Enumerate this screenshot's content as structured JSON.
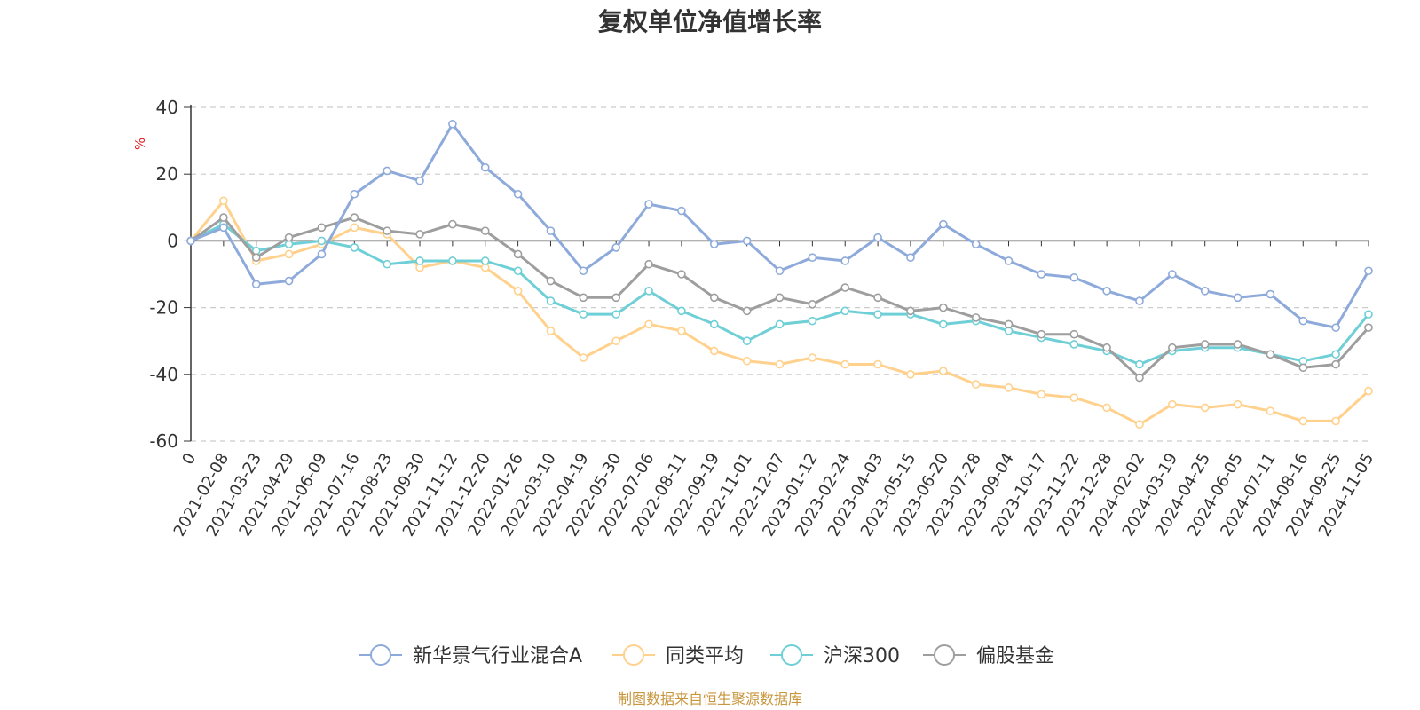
{
  "chart_data": {
    "type": "line",
    "title": "复权单位净值增长率",
    "ylabel": "%",
    "ylim": [
      -60,
      40
    ],
    "yticks": [
      40,
      20,
      0,
      -20,
      -40,
      -60
    ],
    "grid": true,
    "legend_position": "bottom-center",
    "source": "制图数据来自恒生聚源数据库",
    "categories": [
      "0",
      "2021-02-08",
      "2021-03-23",
      "2021-04-29",
      "2021-06-09",
      "2021-07-16",
      "2021-08-23",
      "2021-09-30",
      "2021-11-12",
      "2021-12-20",
      "2022-01-26",
      "2022-03-10",
      "2022-04-19",
      "2022-05-30",
      "2022-07-06",
      "2022-08-11",
      "2022-09-19",
      "2022-11-01",
      "2022-12-07",
      "2023-01-12",
      "2023-02-24",
      "2023-04-03",
      "2023-05-15",
      "2023-06-20",
      "2023-07-28",
      "2023-09-04",
      "2023-10-17",
      "2023-11-22",
      "2023-12-28",
      "2024-02-02",
      "2024-03-19",
      "2024-04-25",
      "2024-06-05",
      "2024-07-11",
      "2024-08-16",
      "2024-09-25",
      "2024-11-05"
    ],
    "series": [
      {
        "name": "新华景气行业混合A",
        "color": "#8eaadb",
        "values": [
          0,
          4,
          -13,
          -12,
          -4,
          14,
          21,
          18,
          35,
          22,
          14,
          3,
          -9,
          -2,
          11,
          9,
          -1,
          0,
          -9,
          -5,
          -6,
          1,
          -5,
          5,
          -1,
          -6,
          -10,
          -11,
          -15,
          -18,
          -10,
          -15,
          -17,
          -16,
          -24,
          -26,
          -9
        ]
      },
      {
        "name": "同类平均",
        "color": "#ffd18c",
        "values": [
          0,
          12,
          -6,
          -4,
          -1,
          4,
          2,
          -8,
          -6,
          -8,
          -15,
          -27,
          -35,
          -30,
          -25,
          -27,
          -33,
          -36,
          -37,
          -35,
          -37,
          -37,
          -40,
          -39,
          -43,
          -44,
          -46,
          -47,
          -50,
          -55,
          -49,
          -50,
          -49,
          -51,
          -54,
          -54,
          -45
        ]
      },
      {
        "name": "沪深300",
        "color": "#6fcfd6",
        "values": [
          0,
          5,
          -3,
          -1,
          0,
          -2,
          -7,
          -6,
          -6,
          -6,
          -9,
          -18,
          -22,
          -22,
          -15,
          -21,
          -25,
          -30,
          -25,
          -24,
          -21,
          -22,
          -22,
          -25,
          -24,
          -27,
          -29,
          -31,
          -33,
          -37,
          -33,
          -32,
          -32,
          -34,
          -36,
          -34,
          -22
        ]
      },
      {
        "name": "偏股基金",
        "color": "#9e9e9e",
        "values": [
          0,
          7,
          -5,
          1,
          4,
          7,
          3,
          2,
          5,
          3,
          -4,
          -12,
          -17,
          -17,
          -7,
          -10,
          -17,
          -21,
          -17,
          -19,
          -14,
          -17,
          -21,
          -20,
          -23,
          -25,
          -28,
          -28,
          -32,
          -41,
          -32,
          -31,
          -31,
          -34,
          -38,
          -37,
          -26
        ]
      }
    ]
  }
}
